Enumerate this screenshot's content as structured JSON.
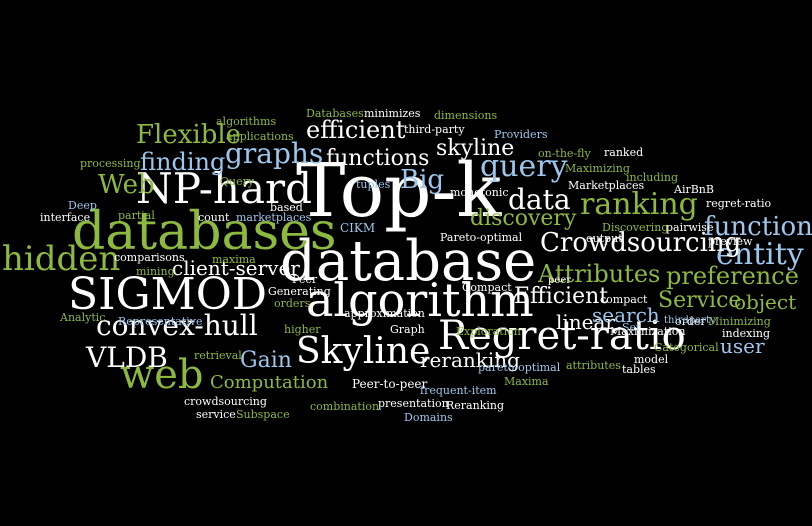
{
  "colors": {
    "green": "#8db93e",
    "blue": "#9cc6ec",
    "white": "#ffffff",
    "background": "#000000"
  },
  "words": [
    "Top-k",
    "database",
    "databases",
    "SIGMOD",
    "NP-hard",
    "algorithm",
    "Regret-ratio",
    "Skyline",
    "web",
    "hidden",
    "graphs",
    "query",
    "ranking",
    "data",
    "entity",
    "function",
    "Crowdsourcing",
    "convex-hull",
    "VLDB",
    "Flexible",
    "efficient",
    "functions",
    "skyline",
    "Big",
    "Web",
    "finding",
    "discovery",
    "Attributes",
    "preference",
    "Service",
    "client-server",
    "Efficient",
    "linear",
    "search",
    "object",
    "user",
    "Gain",
    "reranking",
    "Computation",
    "Peer-to-peer",
    "Databases",
    "minimizes",
    "dimensions",
    "algorithms",
    "applications",
    "third-party",
    "Providers",
    "processing",
    "on-the-fly",
    "ranked",
    "Maximizing",
    "including",
    "tuples",
    "monotonic",
    "Marketplaces",
    "AirBnB",
    "Query",
    "based",
    "Deep",
    "interface",
    "partial",
    "count",
    "marketplaces",
    "regret-ratio",
    "CIKM",
    "Pareto-optimal",
    "output",
    "Discovering",
    "pairwise",
    "preview",
    "order",
    "comparisons",
    "maxima",
    "mining",
    "Peer",
    "Generating",
    "orders",
    "Compact",
    "peer",
    "compact",
    "Set",
    "Minimizing",
    "thirdparty",
    "indexing",
    "Analytic",
    "Representative",
    "approximation",
    "higher",
    "Graph",
    "Exploration",
    "Maximization",
    "Categorical",
    "model",
    "retrieval",
    "pareto-optimal",
    "attributes",
    "tables",
    "crowdsourcing",
    "frequent-item",
    "Maxima",
    "service",
    "Subspace",
    "combination",
    "presentation",
    "Reranking",
    "Domains"
  ]
}
